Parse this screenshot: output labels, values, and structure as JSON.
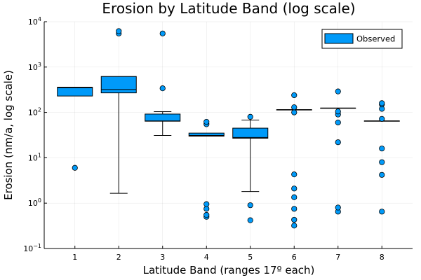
{
  "chart_data": {
    "type": "box",
    "title": "Erosion by Latitude Band (log scale)",
    "xlabel": "Latitude Band (ranges 17º each)",
    "ylabel": "Erosion (nm/a, log scale)",
    "y_scale": "log10",
    "ylim": [
      0.1,
      10000
    ],
    "xlim": [
      0.3,
      8.7
    ],
    "y_ticks": [
      {
        "value": 0.1,
        "base": "10",
        "exp": "−1"
      },
      {
        "value": 1,
        "base": "10",
        "exp": "0"
      },
      {
        "value": 10,
        "base": "10",
        "exp": "1"
      },
      {
        "value": 100,
        "base": "10",
        "exp": "2"
      },
      {
        "value": 1000,
        "base": "10",
        "exp": "3"
      },
      {
        "value": 10000,
        "base": "10",
        "exp": "4"
      }
    ],
    "categories": [
      "1",
      "2",
      "3",
      "4",
      "5",
      "6",
      "7",
      "8"
    ],
    "grid": true,
    "legend_position": "top-right",
    "series": [
      {
        "name": "Observed",
        "color": "#009AF9",
        "boxes": [
          {
            "x": 1,
            "lower_whisker": 230,
            "q1": 230,
            "median": 350,
            "q3": 360,
            "upper_whisker": 360,
            "outliers": [
              6
            ]
          },
          {
            "x": 2,
            "lower_whisker": 1.65,
            "q1": 270,
            "median": 320,
            "q3": 620,
            "upper_whisker": 620,
            "outliers": [
              5500,
              6200
            ]
          },
          {
            "x": 3,
            "lower_whisker": 31,
            "q1": 64,
            "median": 65,
            "q3": 92,
            "upper_whisker": 104,
            "outliers": [
              340,
              5500
            ]
          },
          {
            "x": 4,
            "lower_whisker": 30,
            "q1": 30,
            "median": 31,
            "q3": 35,
            "upper_whisker": 35,
            "outliers": [
              0.5,
              0.55,
              0.75,
              0.95,
              55,
              62
            ]
          },
          {
            "x": 5,
            "lower_whisker": 1.8,
            "q1": 27,
            "median": 28,
            "q3": 45,
            "upper_whisker": 68,
            "outliers": [
              0.42,
              0.9,
              80
            ]
          },
          {
            "x": 6,
            "lower_whisker": 115,
            "q1": 115,
            "median": 115,
            "q3": 115,
            "upper_whisker": 115,
            "outliers": [
              0.32,
              0.43,
              0.75,
              1.35,
              2.1,
              4.3,
              100,
              130,
              240
            ]
          },
          {
            "x": 7,
            "lower_whisker": 125,
            "q1": 125,
            "median": 125,
            "q3": 125,
            "upper_whisker": 125,
            "outliers": [
              0.65,
              0.8,
              22,
              60,
              90,
              105,
              290
            ]
          },
          {
            "x": 8,
            "lower_whisker": 65,
            "q1": 65,
            "median": 65,
            "q3": 65,
            "upper_whisker": 65,
            "outliers": [
              0.65,
              4.2,
              8,
              16,
              72,
              120,
              150,
              160
            ]
          }
        ]
      }
    ]
  }
}
